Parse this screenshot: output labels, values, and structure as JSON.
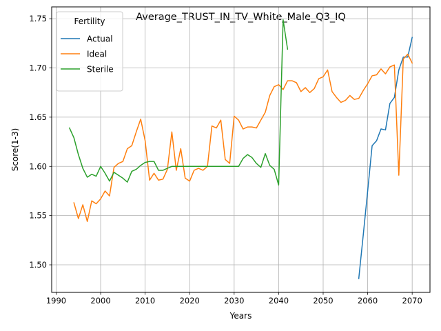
{
  "chart_data": {
    "type": "line",
    "title": "Average_TRUST_IN_TV_White_Male_Q3_IQ",
    "xlabel": "Years",
    "ylabel": "Score(1-3)",
    "xlim": [
      1989,
      2074
    ],
    "ylim": [
      1.472,
      1.762
    ],
    "xticks": [
      1990,
      2000,
      2010,
      2020,
      2030,
      2040,
      2050,
      2060,
      2070
    ],
    "yticks": [
      1.5,
      1.55,
      1.6,
      1.65,
      1.7,
      1.75
    ],
    "xtick_labels": [
      "1990",
      "2000",
      "2010",
      "2020",
      "2030",
      "2040",
      "2050",
      "2060",
      "2070"
    ],
    "ytick_labels": [
      "1.50",
      "1.55",
      "1.60",
      "1.65",
      "1.70",
      "1.75"
    ],
    "grid": true,
    "legend": {
      "title": "Fertility",
      "placement": "top-left"
    },
    "series": [
      {
        "name": "Actual",
        "color": "#1f77b4",
        "x": [
          2058,
          2059,
          2060,
          2061,
          2062,
          2063,
          2064,
          2065,
          2066,
          2067,
          2068,
          2069,
          2070
        ],
        "y": [
          1.486,
          1.53,
          1.575,
          1.621,
          1.626,
          1.638,
          1.637,
          1.664,
          1.67,
          1.698,
          1.711,
          1.711,
          1.731
        ]
      },
      {
        "name": "Ideal",
        "color": "#ff7f0e",
        "x": [
          1994,
          1995,
          1996,
          1997,
          1998,
          1999,
          2000,
          2001,
          2002,
          2003,
          2004,
          2005,
          2006,
          2007,
          2008,
          2009,
          2010,
          2011,
          2012,
          2013,
          2014,
          2015,
          2016,
          2017,
          2018,
          2019,
          2020,
          2021,
          2022,
          2023,
          2024,
          2025,
          2026,
          2027,
          2028,
          2029,
          2030,
          2031,
          2032,
          2033,
          2034,
          2035,
          2036,
          2037,
          2038,
          2039,
          2040,
          2041,
          2042,
          2043,
          2044,
          2045,
          2046,
          2047,
          2048,
          2049,
          2050,
          2051,
          2052,
          2053,
          2054,
          2055,
          2056,
          2057,
          2058,
          2059,
          2060,
          2061,
          2062,
          2063,
          2064,
          2065,
          2066,
          2067,
          2068,
          2069,
          2070
        ],
        "y": [
          1.563,
          1.547,
          1.561,
          1.544,
          1.565,
          1.562,
          1.567,
          1.575,
          1.57,
          1.599,
          1.603,
          1.605,
          1.618,
          1.621,
          1.635,
          1.648,
          1.626,
          1.586,
          1.593,
          1.586,
          1.587,
          1.597,
          1.635,
          1.596,
          1.618,
          1.588,
          1.585,
          1.596,
          1.598,
          1.596,
          1.6,
          1.641,
          1.639,
          1.647,
          1.607,
          1.603,
          1.651,
          1.647,
          1.638,
          1.64,
          1.64,
          1.639,
          1.647,
          1.655,
          1.672,
          1.681,
          1.683,
          1.678,
          1.687,
          1.687,
          1.685,
          1.676,
          1.68,
          1.675,
          1.679,
          1.689,
          1.691,
          1.698,
          1.676,
          1.67,
          1.665,
          1.667,
          1.672,
          1.668,
          1.669,
          1.677,
          1.684,
          1.692,
          1.693,
          1.699,
          1.694,
          1.701,
          1.703,
          1.591,
          1.709,
          1.714,
          1.705
        ]
      },
      {
        "name": "Sterile",
        "color": "#2ca02c",
        "x": [
          1993,
          1994,
          1995,
          1996,
          1997,
          1998,
          1999,
          2000,
          2001,
          2002,
          2003,
          2004,
          2005,
          2006,
          2007,
          2008,
          2009,
          2010,
          2011,
          2012,
          2013,
          2014,
          2015,
          2016,
          2017,
          2018,
          2019,
          2020,
          2021,
          2022,
          2023,
          2024,
          2025,
          2026,
          2027,
          2028,
          2029,
          2030,
          2031,
          2032,
          2033,
          2034,
          2035,
          2036,
          2037,
          2038,
          2039,
          2040,
          2041,
          2042
        ],
        "y": [
          1.639,
          1.629,
          1.612,
          1.598,
          1.589,
          1.592,
          1.59,
          1.6,
          1.593,
          1.585,
          1.594,
          1.591,
          1.588,
          1.584,
          1.595,
          1.597,
          1.601,
          1.604,
          1.605,
          1.605,
          1.596,
          1.596,
          1.598,
          1.6,
          1.6,
          1.6,
          1.6,
          1.6,
          1.6,
          1.6,
          1.6,
          1.6,
          1.6,
          1.6,
          1.6,
          1.6,
          1.6,
          1.6,
          1.6,
          1.608,
          1.612,
          1.609,
          1.603,
          1.599,
          1.613,
          1.601,
          1.597,
          1.581,
          1.749,
          1.719
        ]
      }
    ]
  }
}
